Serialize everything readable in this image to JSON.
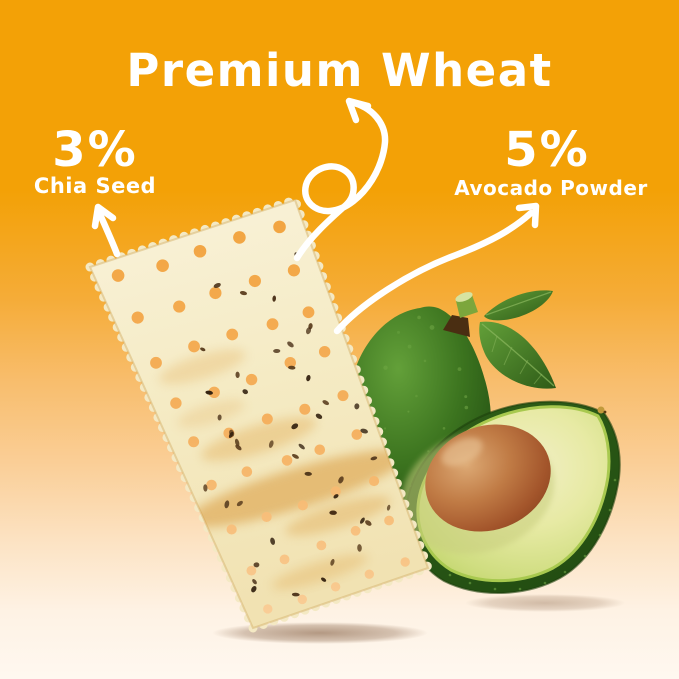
{
  "title": "Premium Wheat",
  "callouts": {
    "chia": {
      "percent": "3%",
      "label": "Chia Seed"
    },
    "avocado": {
      "percent": "5%",
      "label": "Avocado Powder"
    }
  },
  "colors": {
    "background_top": "#F3A106",
    "background_bottom": "#FFF8F0",
    "text": "#FFFFFF",
    "cracker": "#F5EBC4",
    "avocado_skin": "#2A5517",
    "avocado_flesh": "#E7EAA4",
    "pit": "#A3552B"
  },
  "graphics": {
    "cracker": "wheat-cracker-with-chia-seeds",
    "avocado_whole": "whole-avocado-with-stem-and-leaves",
    "avocado_half": "halved-avocado-with-pit",
    "arrow_left": "curved-arrow-to-chia-seed",
    "arrow_center": "loop-arrow-to-premium-wheat",
    "arrow_right": "curved-arrow-to-avocado-powder"
  }
}
